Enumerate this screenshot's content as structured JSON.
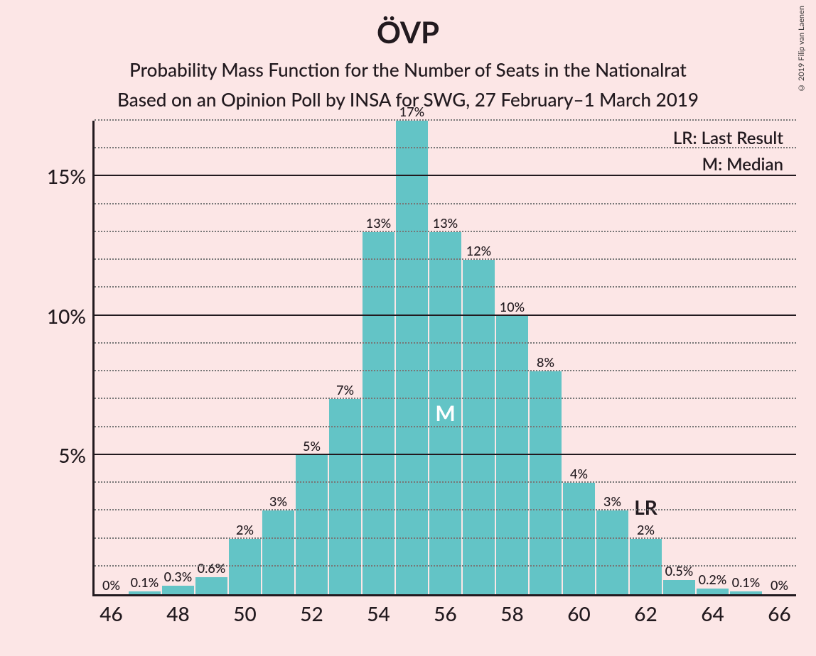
{
  "title": "ÖVP",
  "subtitle1": "Probability Mass Function for the Number of Seats in the Nationalrat",
  "subtitle2": "Based on an Opinion Poll by INSA for SWG, 27 February–1 March 2019",
  "copyright": "© 2019 Filip van Laenen",
  "legend": {
    "lr": "LR: Last Result",
    "m": "M: Median"
  },
  "chart": {
    "type": "bar",
    "background_color": "#fce6e6",
    "bar_color": "#63c4c6",
    "axis_color": "#221a1f",
    "grid_minor_color": "#777777",
    "text_color": "#221a1f",
    "median_label_color": "#ffffff",
    "title_fontsize": 42,
    "subtitle_fontsize": 26,
    "axis_label_fontsize": 28,
    "bar_label_fontsize": 18,
    "ylim": [
      0,
      17
    ],
    "y_major_ticks": [
      5,
      10,
      15
    ],
    "y_minor_step": 1,
    "x_range": [
      46,
      66
    ],
    "x_tick_step": 2,
    "categories": [
      46,
      47,
      48,
      49,
      50,
      51,
      52,
      53,
      54,
      55,
      56,
      57,
      58,
      59,
      60,
      61,
      62,
      63,
      64,
      65,
      66
    ],
    "values": [
      0,
      0.1,
      0.3,
      0.6,
      2,
      3,
      5,
      7,
      13,
      17,
      13,
      12,
      10,
      8,
      4,
      3,
      2,
      0.5,
      0.2,
      0.1,
      0
    ],
    "value_labels": [
      "0%",
      "0.1%",
      "0.3%",
      "0.6%",
      "2%",
      "3%",
      "5%",
      "7%",
      "13%",
      "17%",
      "13%",
      "12%",
      "10%",
      "8%",
      "4%",
      "3%",
      "2%",
      "0.5%",
      "0.2%",
      "0.1%",
      "0%"
    ],
    "median_index": 10,
    "median_marker": "M",
    "last_result_index": 16,
    "last_result_marker": "LR"
  }
}
